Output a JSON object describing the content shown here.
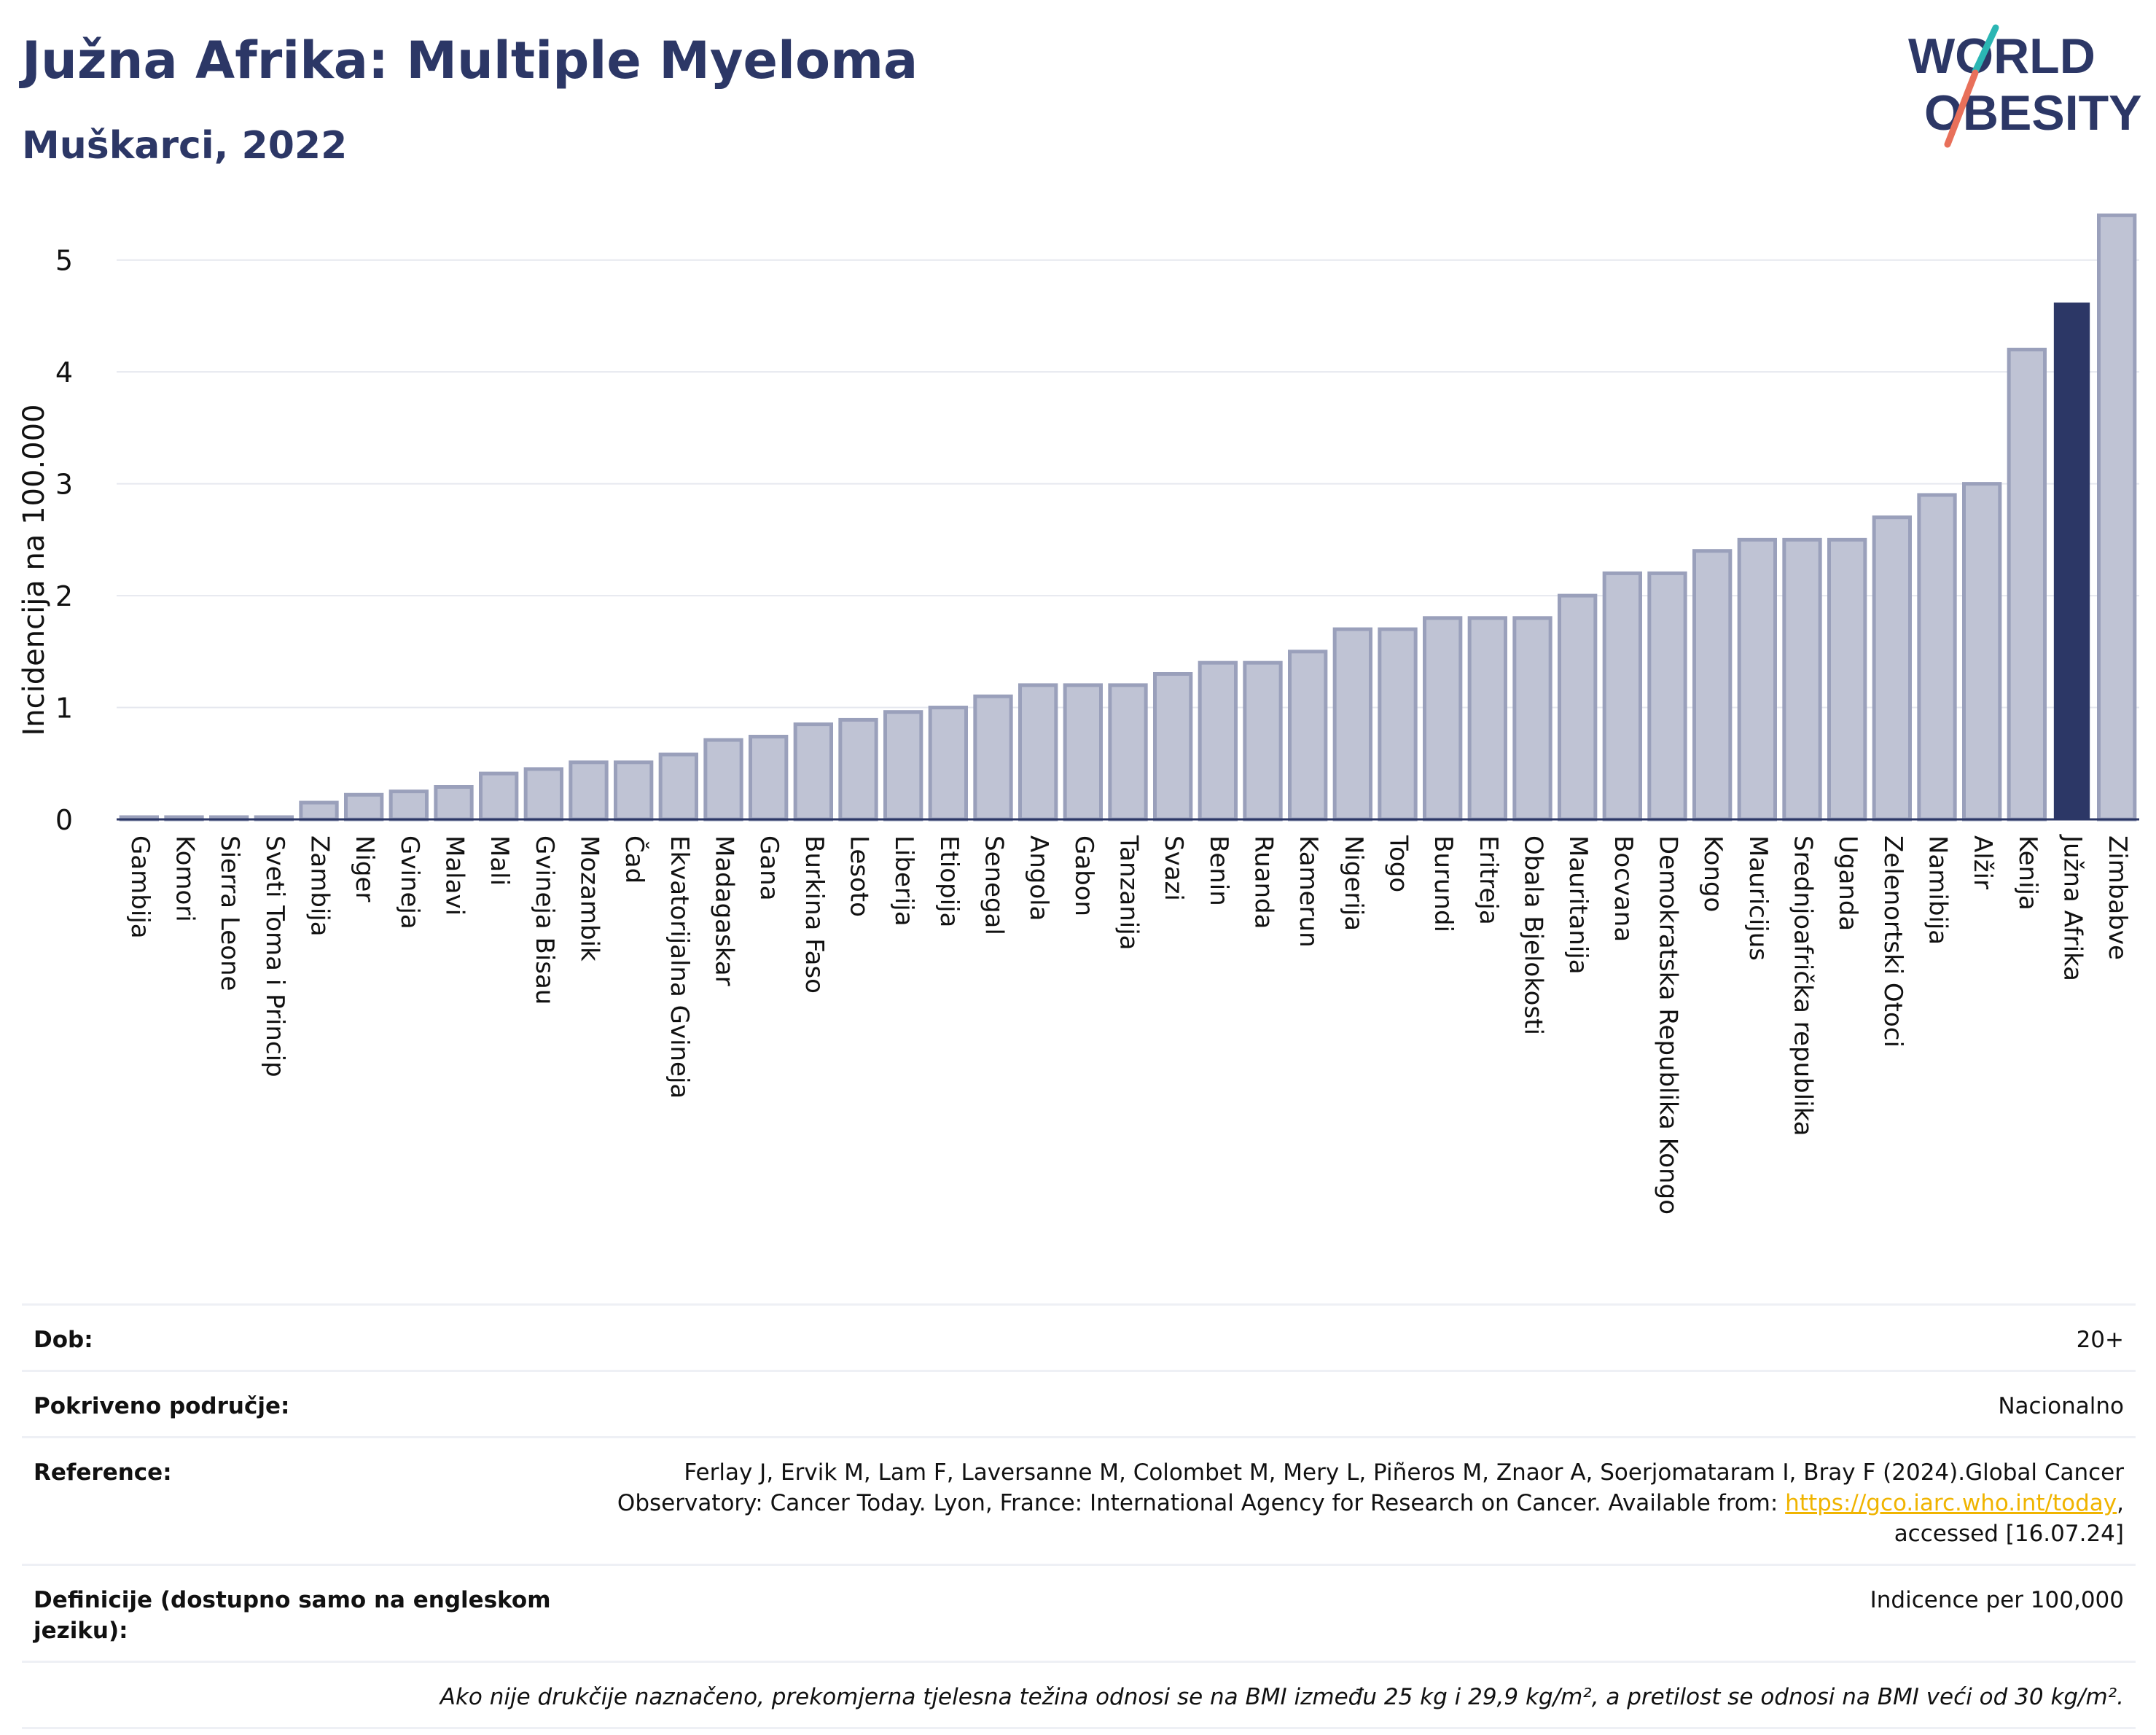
{
  "header": {
    "title": "Južna Afrika: Multiple Myeloma",
    "subtitle": "Muškarci, 2022"
  },
  "logo": {
    "line1": "WORLD",
    "line2": "OBESITY",
    "accent_colors": [
      "#2bb6b4",
      "#e8705a"
    ]
  },
  "colors": {
    "bar": "#bfc3d4",
    "bar_stroke": "#9aa0bb",
    "highlight": "#2c3766",
    "grid": "#e6e8ef",
    "axis": "#2c3766"
  },
  "chart_data": {
    "type": "bar",
    "title": "",
    "xlabel": "",
    "ylabel": "Incidencija na 100.000",
    "ylim": [
      0,
      5.5
    ],
    "yticks": [
      0,
      1,
      2,
      3,
      4,
      5
    ],
    "grid": true,
    "highlight_category": "Južna Afrika",
    "categories": [
      "Gambija",
      "Komori",
      "Sierra Leone",
      "Sveti Toma i Princip",
      "Zambija",
      "Niger",
      "Gvineja",
      "Malavi",
      "Mali",
      "Gvineja Bisau",
      "Mozambik",
      "Čad",
      "Ekvatorijalna Gvineja",
      "Madagaskar",
      "Gana",
      "Burkina Faso",
      "Lesoto",
      "Liberija",
      "Etiopija",
      "Senegal",
      "Angola",
      "Gabon",
      "Tanzanija",
      "Svazi",
      "Benin",
      "Ruanda",
      "Kamerun",
      "Nigerija",
      "Togo",
      "Burundi",
      "Eritreja",
      "Obala Bjelokosti",
      "Mauritanija",
      "Bocvana",
      "Demokratska Republika Kongo",
      "Kongo",
      "Mauricijus",
      "Srednjoafrička republika",
      "Uganda",
      "Zelenortski Otoci",
      "Namibija",
      "Alžir",
      "Kenija",
      "Južna Afrika",
      "Zimbabve"
    ],
    "values": [
      0.02,
      0.02,
      0.02,
      0.02,
      0.15,
      0.22,
      0.25,
      0.29,
      0.41,
      0.45,
      0.51,
      0.51,
      0.58,
      0.71,
      0.74,
      0.85,
      0.89,
      0.96,
      1.0,
      1.1,
      1.2,
      1.2,
      1.2,
      1.3,
      1.4,
      1.4,
      1.5,
      1.7,
      1.7,
      1.8,
      1.8,
      1.8,
      2.0,
      2.2,
      2.2,
      2.4,
      2.5,
      2.5,
      2.5,
      2.7,
      2.9,
      3.0,
      4.2,
      4.62,
      5.4
    ]
  },
  "info_table": {
    "age_label": "Dob:",
    "age_value": "20+",
    "coverage_label": "Pokriveno područje:",
    "coverage_value": "Nacionalno",
    "reference_label": "Reference:",
    "reference_text_1": "Ferlay J, Ervik M, Lam F, Laversanne M, Colombet M, Mery L, Piñeros M, Znaor A, Soerjomataram I, Bray F (2024).Global Cancer Observatory: Cancer Today. Lyon, France: International Agency for Research on Cancer. Available from: ",
    "reference_link": "https://gco.iarc.who.int/today",
    "reference_text_2": ", accessed [16.07.24]",
    "definitions_label": "Definicije (dostupno samo na engleskom jeziku):",
    "definitions_value": "Indicence per 100,000",
    "note": "Ako nije drukčije naznačeno, prekomjerna tjelesna težina odnosi se na BMI između 25 kg i 29,9 kg/m², a pretilost se odnosi na BMI veći od 30 kg/m²."
  }
}
